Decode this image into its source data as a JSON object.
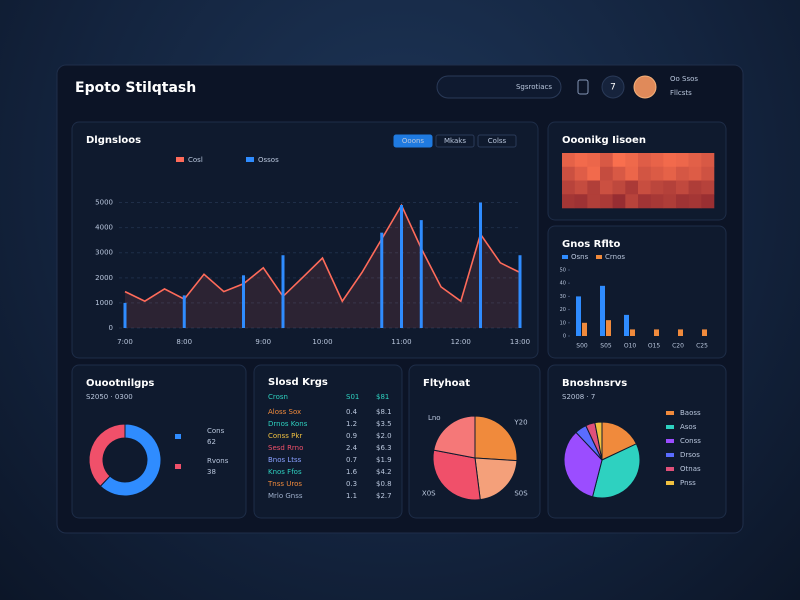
{
  "header": {
    "title": "Epoto Stilqtash",
    "search": "Sgsrotiacs",
    "badge": "7",
    "user": [
      "Oo Ssos",
      "Fllcsts"
    ]
  },
  "chart_data": [
    {
      "type": "line",
      "title": "Dlgnsloos",
      "tabs": [
        "Ooons",
        "Mkaks",
        "Colss"
      ],
      "categories": [
        "7:00",
        null,
        null,
        "8:00",
        null,
        null,
        null,
        "9:00",
        null,
        null,
        "10:00",
        null,
        null,
        null,
        "11:00",
        null,
        null,
        "12:00",
        null,
        null,
        "13:00"
      ],
      "series": [
        {
          "name": "Cosl",
          "color": "#ff6b5a",
          "values": [
            1450,
            1070,
            1560,
            1150,
            2140,
            1450,
            1760,
            2400,
            1260,
            2020,
            2790,
            1070,
            2210,
            3550,
            4890,
            3170,
            1640,
            1070,
            3740,
            2600,
            2210
          ]
        },
        {
          "name": "Ossos",
          "color": "#2f8cff",
          "type": "bar",
          "values": [
            1000,
            null,
            null,
            1300,
            null,
            null,
            2100,
            null,
            2900,
            null,
            null,
            null,
            null,
            3800,
            4900,
            4300,
            null,
            null,
            5000,
            null,
            2900
          ]
        }
      ],
      "ylim": [
        0,
        5500
      ],
      "yticks": [
        0,
        1000,
        2000,
        3000,
        4000,
        5000
      ],
      "grid": true
    },
    {
      "type": "heatmap",
      "title": "Ooonikg Iisoen",
      "colors": [
        "#7d1c2a",
        "#ff7350"
      ],
      "vlim": [
        0,
        100
      ],
      "values": [
        [
          80,
          90,
          85,
          70,
          95,
          88,
          75,
          82,
          90,
          86,
          78,
          70
        ],
        [
          60,
          75,
          90,
          55,
          70,
          85,
          65,
          72,
          80,
          68,
          74,
          62
        ],
        [
          45,
          55,
          40,
          60,
          50,
          35,
          58,
          48,
          42,
          52,
          38,
          44
        ],
        [
          30,
          25,
          40,
          35,
          20,
          45,
          28,
          32,
          38,
          26,
          30,
          22
        ]
      ]
    },
    {
      "type": "bar",
      "title": "Gnos Rflto",
      "categories": [
        "S00",
        "S05",
        "O10",
        "O15",
        "C20",
        "C25"
      ],
      "series": [
        {
          "name": "Osns",
          "color": "#2f8cff",
          "values": [
            30,
            38,
            16,
            0,
            0,
            0
          ]
        },
        {
          "name": "Crnos",
          "color": "#f08a3c",
          "values": [
            10,
            12,
            5,
            5,
            5,
            5
          ]
        }
      ],
      "ylim": [
        0,
        50
      ],
      "yticks": [
        0,
        10,
        20,
        30,
        40,
        50
      ]
    },
    {
      "type": "donut",
      "title": "Ouootnilgps",
      "subtitle": "S2050 · 0300",
      "categories": [
        "Cons",
        "Rvons"
      ],
      "values": [
        62,
        38
      ],
      "colors": [
        "#2f8cff",
        "#f0506a"
      ]
    },
    {
      "type": "pie",
      "title": "Fltyhoat",
      "categories": [
        "Y20",
        "S0S",
        "X0S",
        "Lno"
      ],
      "values": [
        26,
        22,
        30,
        22
      ],
      "colors": [
        "#f08a3c",
        "#f4a07a",
        "#f0506a",
        "#f57878"
      ]
    },
    {
      "type": "pie",
      "title": "Bnoshnsrvs",
      "subtitle": "S2008 · 7",
      "categories": [
        "Baoss",
        "Asos",
        "Conss",
        "Drsos",
        "Otnas",
        "Pnss"
      ],
      "values": [
        18,
        36,
        34,
        5,
        4,
        3
      ],
      "colors": [
        "#f08a3c",
        "#2ed1c0",
        "#9b4dff",
        "#5a6cff",
        "#e0507a",
        "#f0c040"
      ],
      "legend": "right"
    }
  ],
  "table": {
    "title": "Slosd Krgs",
    "header": [
      "Crosn",
      "S01",
      "$81"
    ],
    "rows": [
      [
        "Aloss Sox",
        "0.4",
        "$8.1"
      ],
      [
        "Drnos Kons",
        "1.2",
        "$3.5"
      ],
      [
        "Conss Pkr",
        "0.9",
        "$2.0"
      ],
      [
        "Sesd Rrno",
        "2.4",
        "$6.3"
      ],
      [
        "Bnos Ltss",
        "0.7",
        "$1.9"
      ],
      [
        "Knos Ffos",
        "1.6",
        "$4.2"
      ],
      [
        "Tnss Uros",
        "0.3",
        "$0.8"
      ],
      [
        "Mrlo Gnss",
        "1.1",
        "$2.7"
      ]
    ]
  }
}
